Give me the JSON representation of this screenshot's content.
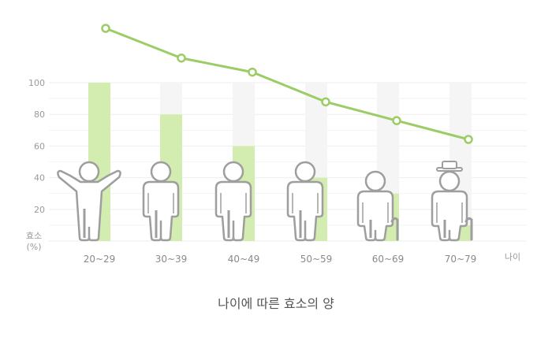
{
  "caption": "나이에 따른 효소의 양",
  "colors": {
    "bar": "#d3ecb0",
    "bar_track": "#f5f5f5",
    "line": "#9ccc65",
    "figure_stroke": "#9e9e9e",
    "grid": "#eeeeee"
  },
  "chart_data": {
    "type": "bar",
    "title": "나이에 따른 효소의 양",
    "xlabel": "나이",
    "ylabel": "효소\n(%)",
    "ylabel_lines": [
      "효소",
      "(%)"
    ],
    "ylim": [
      0,
      100
    ],
    "yticks": [
      20,
      40,
      60,
      80,
      100
    ],
    "grid": true,
    "categories": [
      "20~29",
      "30~39",
      "40~49",
      "50~59",
      "60~69",
      "70~79"
    ],
    "values": [
      100,
      80,
      60,
      40,
      30,
      10
    ],
    "trend_line": {
      "type": "line",
      "note": "decorative trend line drawn above the bars (no printed scale)",
      "points": [
        136,
        117,
        108,
        89,
        77,
        65
      ]
    },
    "figures": [
      "arms-raised",
      "standing",
      "standing",
      "standing",
      "elderly-with-cane",
      "elderly-with-hat-and-cane"
    ]
  }
}
